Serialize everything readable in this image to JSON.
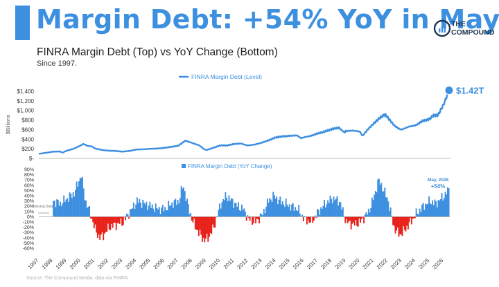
{
  "header": {
    "headline": "Margin Debt: +54% YoY in May",
    "subtitle": "FINRA Margin Debt (Top) vs YoY Change (Bottom)",
    "since": "Since 1997.",
    "brand_line1": "THE",
    "brand_line2": "COMPOUND",
    "source": "Source: The Compound Media, data via FINRA"
  },
  "colors": {
    "accent": "#3d8fe0",
    "line": "#3d8fe0",
    "positive": "#3d8fe0",
    "negative": "#e8221b"
  },
  "chart_data": [
    {
      "type": "line",
      "legend": "FINRA Margin Debt (Level)",
      "ylabel": "$Billions",
      "ylim": [
        0,
        1400
      ],
      "yticks": [
        "$-",
        "$200",
        "$400",
        "$600",
        "$800",
        "$1,000",
        "$1,200",
        "$1,400"
      ],
      "end_label": "$1.42T",
      "x": [
        1997.0,
        1997.5,
        1998.0,
        1998.5,
        1998.7,
        1999.0,
        1999.5,
        2000.0,
        2000.2,
        2000.5,
        2000.8,
        2001.0,
        2001.5,
        2002.0,
        2002.5,
        2003.0,
        2003.5,
        2004.0,
        2004.5,
        2005.0,
        2005.5,
        2006.0,
        2006.5,
        2007.0,
        2007.5,
        2007.8,
        2008.0,
        2008.5,
        2008.8,
        2009.0,
        2009.2,
        2009.5,
        2010.0,
        2010.5,
        2011.0,
        2011.5,
        2011.8,
        2012.0,
        2012.5,
        2013.0,
        2013.5,
        2014.0,
        2014.5,
        2015.0,
        2015.5,
        2015.8,
        2016.0,
        2016.5,
        2017.0,
        2017.5,
        2018.0,
        2018.5,
        2018.9,
        2019.0,
        2019.5,
        2020.0,
        2020.2,
        2020.5,
        2021.0,
        2021.5,
        2021.8,
        2022.0,
        2022.5,
        2022.8,
        2023.0,
        2023.5,
        2024.0,
        2024.5,
        2025.0,
        2025.3,
        2025.6,
        2026.0,
        2026.4
      ],
      "values": [
        95,
        115,
        140,
        145,
        120,
        160,
        200,
        270,
        300,
        260,
        250,
        210,
        175,
        160,
        155,
        140,
        155,
        185,
        190,
        200,
        205,
        220,
        240,
        265,
        370,
        340,
        320,
        270,
        200,
        175,
        190,
        220,
        270,
        270,
        300,
        310,
        280,
        270,
        290,
        330,
        380,
        440,
        460,
        470,
        480,
        420,
        440,
        470,
        520,
        560,
        610,
        640,
        540,
        570,
        580,
        560,
        470,
        580,
        730,
        860,
        920,
        850,
        680,
        620,
        600,
        660,
        690,
        780,
        820,
        900,
        900,
        1120,
        1420
      ]
    },
    {
      "type": "bar",
      "legend": "FINRA Margin Debt (YoY Change)",
      "ylim": [
        -60,
        90
      ],
      "yticks": [
        "-60%",
        "-50%",
        "-40%",
        "-30%",
        "-20%",
        "-10%",
        "0%",
        "10%",
        "20%",
        "30%",
        "40%",
        "50%",
        "60%",
        "70%",
        "80%",
        "90%"
      ],
      "xticks": [
        "1997",
        "1998",
        "1999",
        "2000",
        "2001",
        "2002",
        "2003",
        "2004",
        "2005",
        "2006",
        "2007",
        "2008",
        "2009",
        "2010",
        "2011",
        "2012",
        "2013",
        "2014",
        "2015",
        "2016",
        "2017",
        "2018",
        "2019",
        "2020",
        "2021",
        "2022",
        "2023",
        "2024",
        "2025",
        "2026"
      ],
      "gap_label": "Missing Data",
      "annotation_line1": "May, 2026",
      "annotation_line2": "+54%",
      "x": [
        1998.0,
        1998.5,
        1999.0,
        1999.5,
        2000.0,
        2000.3,
        2000.6,
        2001.0,
        2001.3,
        2001.6,
        2002.0,
        2002.5,
        2003.0,
        2003.5,
        2004.0,
        2004.5,
        2005.0,
        2005.5,
        2006.0,
        2006.5,
        2007.0,
        2007.3,
        2007.6,
        2008.0,
        2008.4,
        2008.8,
        2009.1,
        2009.5,
        2010.0,
        2010.4,
        2010.8,
        2011.2,
        2011.6,
        2012.0,
        2012.5,
        2013.0,
        2013.4,
        2013.8,
        2014.2,
        2014.6,
        2015.0,
        2015.5,
        2016.0,
        2016.5,
        2017.0,
        2017.5,
        2018.0,
        2018.5,
        2019.0,
        2019.5,
        2020.0,
        2020.3,
        2020.6,
        2021.0,
        2021.3,
        2021.6,
        2022.0,
        2022.4,
        2022.8,
        2023.2,
        2023.6,
        2024.0,
        2024.5,
        2025.0,
        2025.4,
        2025.8,
        2026.0,
        2026.4
      ],
      "values": [
        30,
        25,
        35,
        45,
        80,
        30,
        10,
        -25,
        -40,
        -35,
        -20,
        -15,
        -10,
        10,
        30,
        25,
        20,
        15,
        15,
        25,
        30,
        62,
        25,
        -10,
        -30,
        -45,
        -40,
        -20,
        25,
        40,
        30,
        20,
        15,
        -5,
        -10,
        5,
        30,
        40,
        30,
        25,
        20,
        15,
        -5,
        -10,
        10,
        25,
        35,
        30,
        -10,
        -15,
        -10,
        0,
        10,
        40,
        70,
        55,
        30,
        -20,
        -35,
        -25,
        -10,
        5,
        20,
        30,
        25,
        35,
        40,
        54
      ]
    }
  ]
}
